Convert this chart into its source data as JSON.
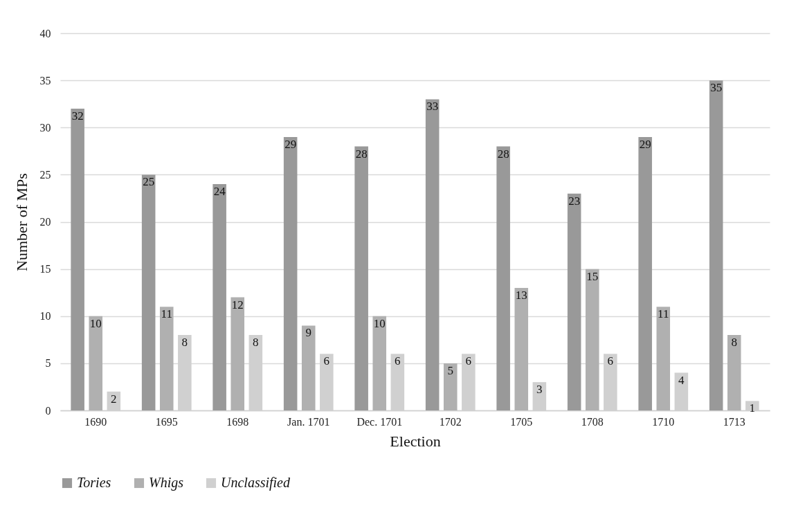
{
  "chart_data": {
    "type": "bar",
    "xlabel": "Election",
    "ylabel": "Number of MPs",
    "categories": [
      "1690",
      "1695",
      "1698",
      "Jan. 1701",
      "Dec. 1701",
      "1702",
      "1705",
      "1708",
      "1710",
      "1713"
    ],
    "series": [
      {
        "name": "Tories",
        "color": "#999999",
        "values": [
          32,
          25,
          24,
          29,
          28,
          33,
          28,
          23,
          29,
          35
        ]
      },
      {
        "name": "Whigs",
        "color": "#b0b0b0",
        "values": [
          10,
          11,
          12,
          9,
          10,
          5,
          13,
          15,
          11,
          8
        ]
      },
      {
        "name": "Unclassified",
        "color": "#d0d0d0",
        "values": [
          2,
          8,
          8,
          6,
          6,
          6,
          3,
          6,
          4,
          1
        ]
      }
    ],
    "ylim": [
      0,
      40
    ],
    "yticks": [
      0,
      5,
      10,
      15,
      20,
      25,
      30,
      35,
      40
    ],
    "grid": true,
    "legend": "bottom",
    "data_labels": true
  }
}
